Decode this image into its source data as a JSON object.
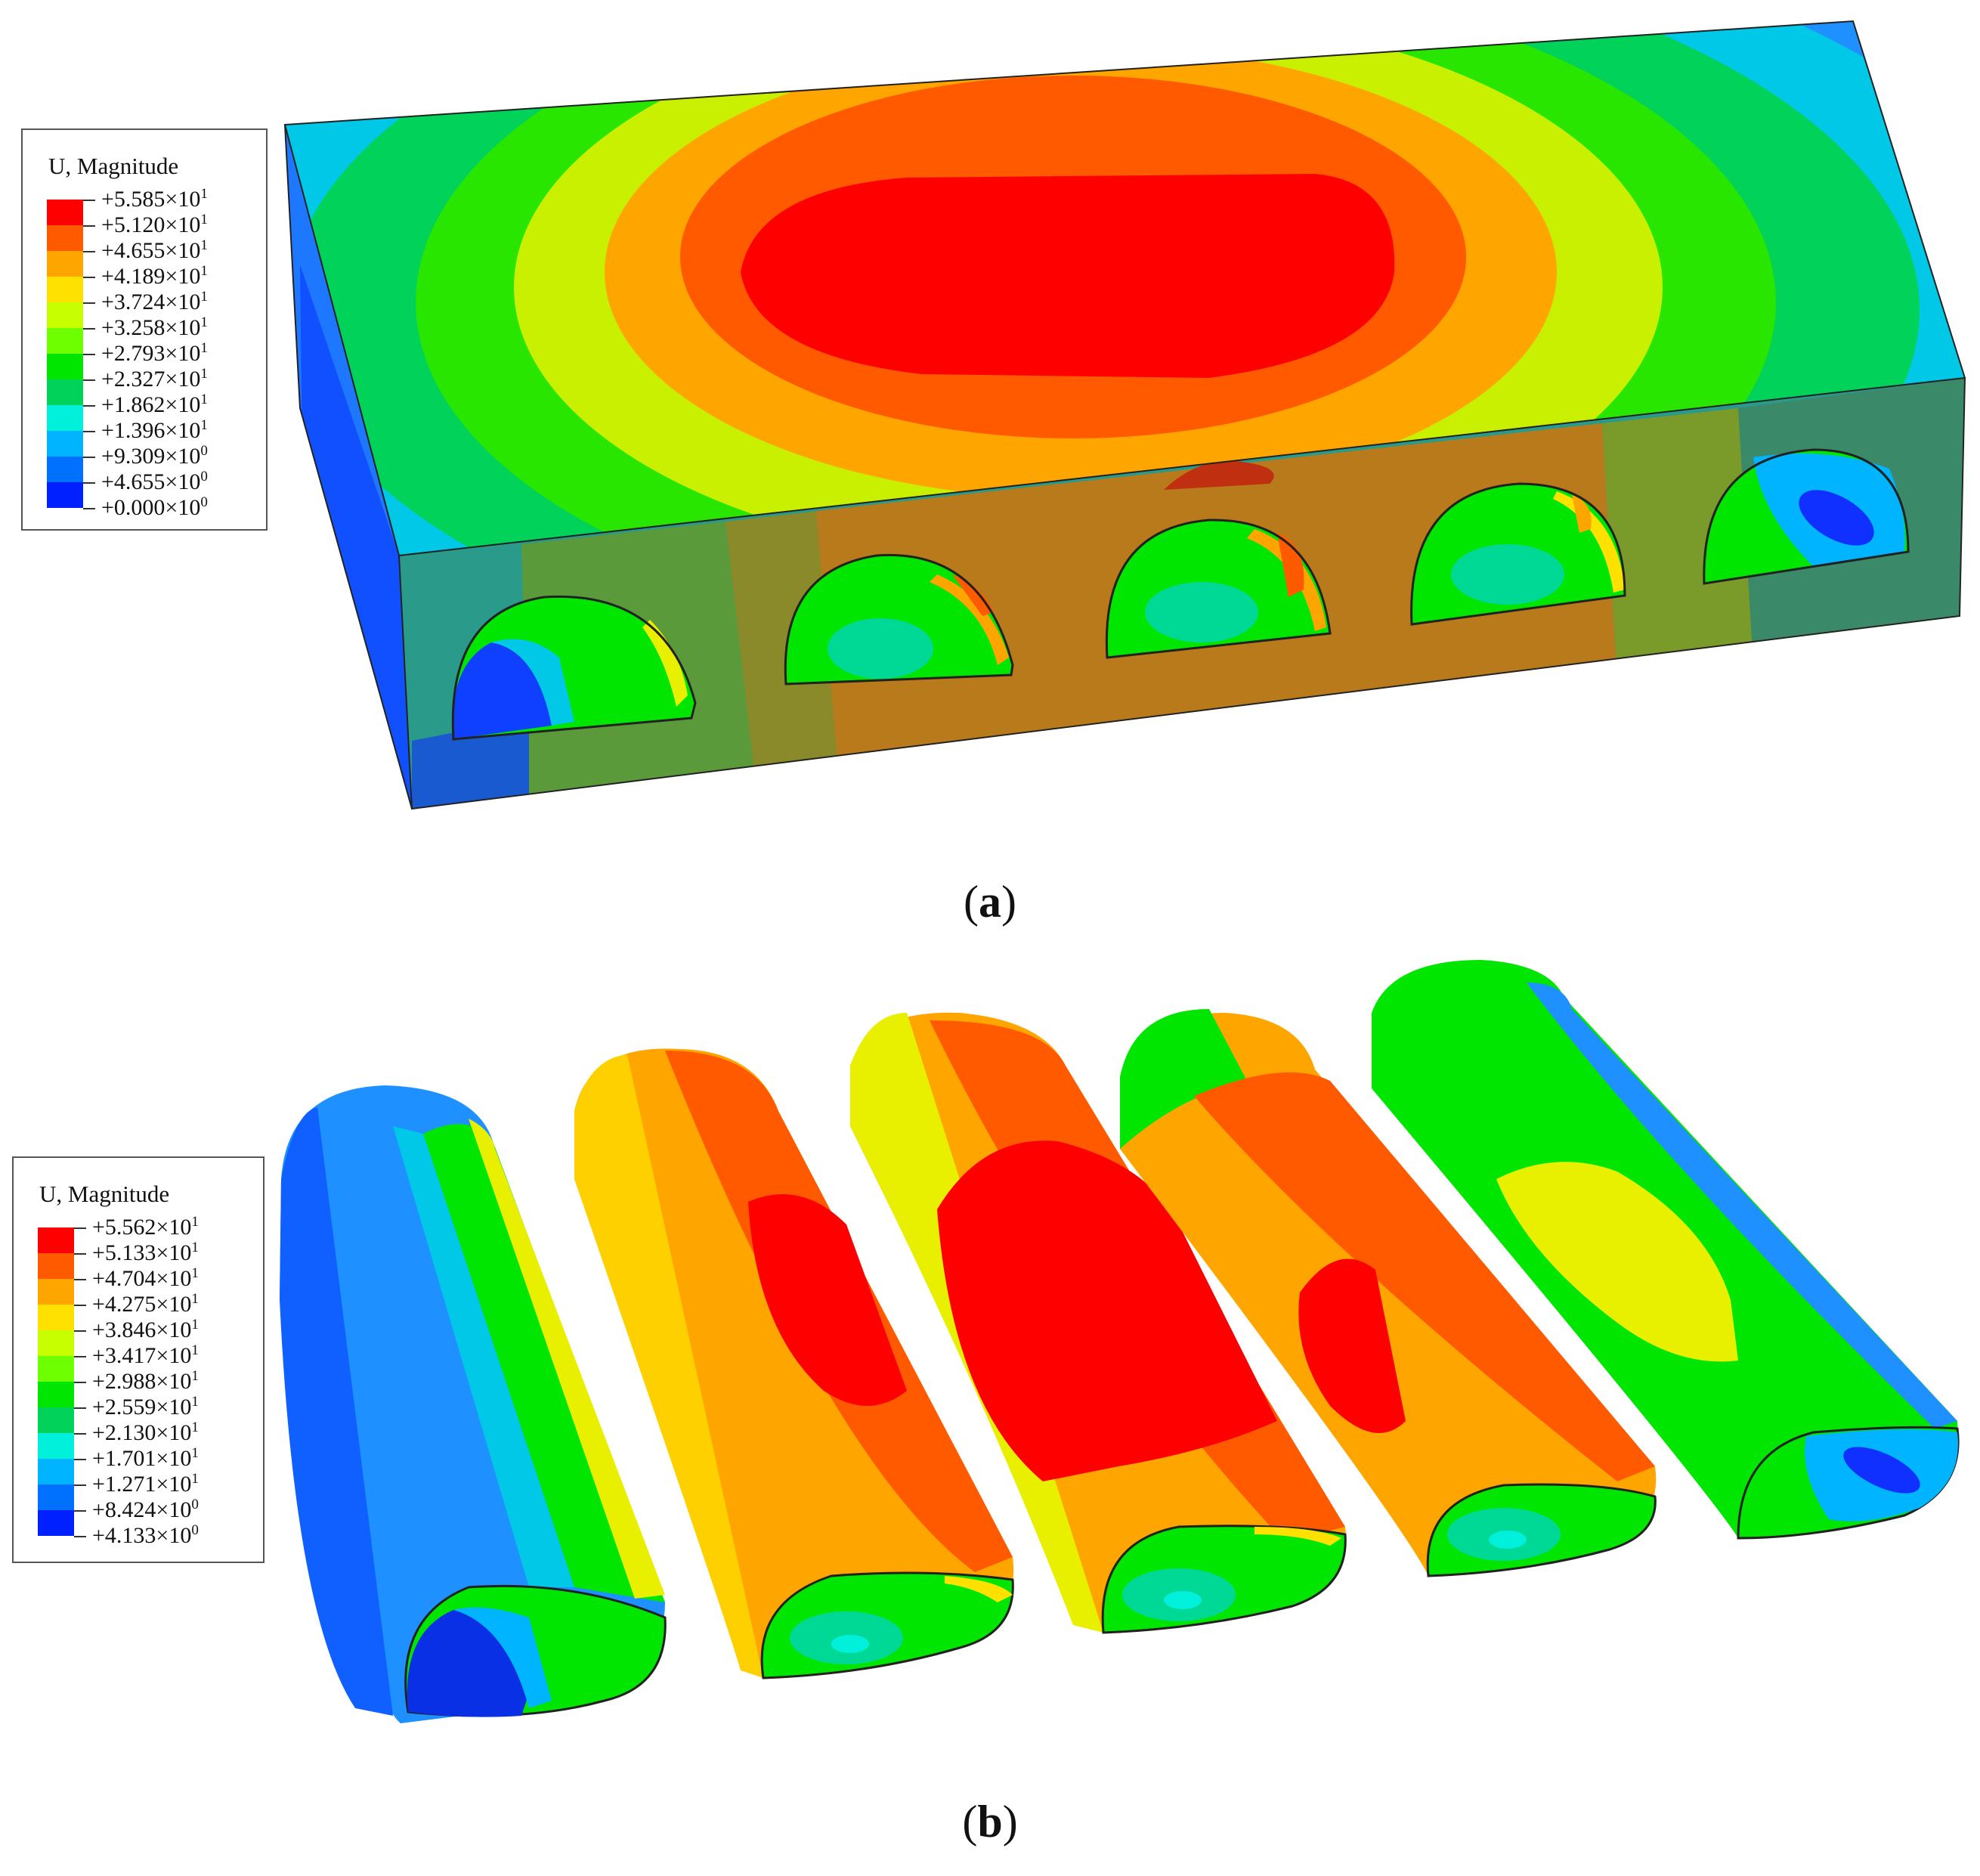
{
  "panel_a": {
    "caption_letter": "a",
    "legend": {
      "title": "U, Magnitude",
      "values": [
        {
          "mantissa": "+5.585",
          "times": "×",
          "base": "10",
          "exp": "1"
        },
        {
          "mantissa": "+5.120",
          "times": "×",
          "base": "10",
          "exp": "1"
        },
        {
          "mantissa": "+4.655",
          "times": "×",
          "base": "10",
          "exp": "1"
        },
        {
          "mantissa": "+4.189",
          "times": "×",
          "base": "10",
          "exp": "1"
        },
        {
          "mantissa": "+3.724",
          "times": "×",
          "base": "10",
          "exp": "1"
        },
        {
          "mantissa": "+3.258",
          "times": "×",
          "base": "10",
          "exp": "1"
        },
        {
          "mantissa": "+2.793",
          "times": "×",
          "base": "10",
          "exp": "1"
        },
        {
          "mantissa": "+2.327",
          "times": "×",
          "base": "10",
          "exp": "1"
        },
        {
          "mantissa": "+1.862",
          "times": "×",
          "base": "10",
          "exp": "1"
        },
        {
          "mantissa": "+1.396",
          "times": "×",
          "base": "10",
          "exp": "1"
        },
        {
          "mantissa": "+9.309",
          "times": "×",
          "base": "10",
          "exp": "0"
        },
        {
          "mantissa": "+4.655",
          "times": "×",
          "base": "10",
          "exp": "0"
        },
        {
          "mantissa": "+0.000",
          "times": "×",
          "base": "10",
          "exp": "0"
        }
      ]
    }
  },
  "panel_b": {
    "caption_letter": "b",
    "legend": {
      "title": "U, Magnitude",
      "values": [
        {
          "mantissa": "+5.562",
          "times": "×",
          "base": "10",
          "exp": "1"
        },
        {
          "mantissa": "+5.133",
          "times": "×",
          "base": "10",
          "exp": "1"
        },
        {
          "mantissa": "+4.704",
          "times": "×",
          "base": "10",
          "exp": "1"
        },
        {
          "mantissa": "+4.275",
          "times": "×",
          "base": "10",
          "exp": "1"
        },
        {
          "mantissa": "+3.846",
          "times": "×",
          "base": "10",
          "exp": "1"
        },
        {
          "mantissa": "+3.417",
          "times": "×",
          "base": "10",
          "exp": "1"
        },
        {
          "mantissa": "+2.988",
          "times": "×",
          "base": "10",
          "exp": "1"
        },
        {
          "mantissa": "+2.559",
          "times": "×",
          "base": "10",
          "exp": "1"
        },
        {
          "mantissa": "+2.130",
          "times": "×",
          "base": "10",
          "exp": "1"
        },
        {
          "mantissa": "+1.701",
          "times": "×",
          "base": "10",
          "exp": "1"
        },
        {
          "mantissa": "+1.271",
          "times": "×",
          "base": "10",
          "exp": "1"
        },
        {
          "mantissa": "+8.424",
          "times": "×",
          "base": "10",
          "exp": "0"
        },
        {
          "mantissa": "+4.133",
          "times": "×",
          "base": "10",
          "exp": "0"
        }
      ]
    }
  },
  "colors": {
    "contour_scale": [
      "#ff0000",
      "#ff5a00",
      "#ffa500",
      "#ffe100",
      "#c8ff00",
      "#6eff00",
      "#00e600",
      "#00d25a",
      "#00f0dc",
      "#00b4ff",
      "#0070ff",
      "#0020ff"
    ]
  }
}
